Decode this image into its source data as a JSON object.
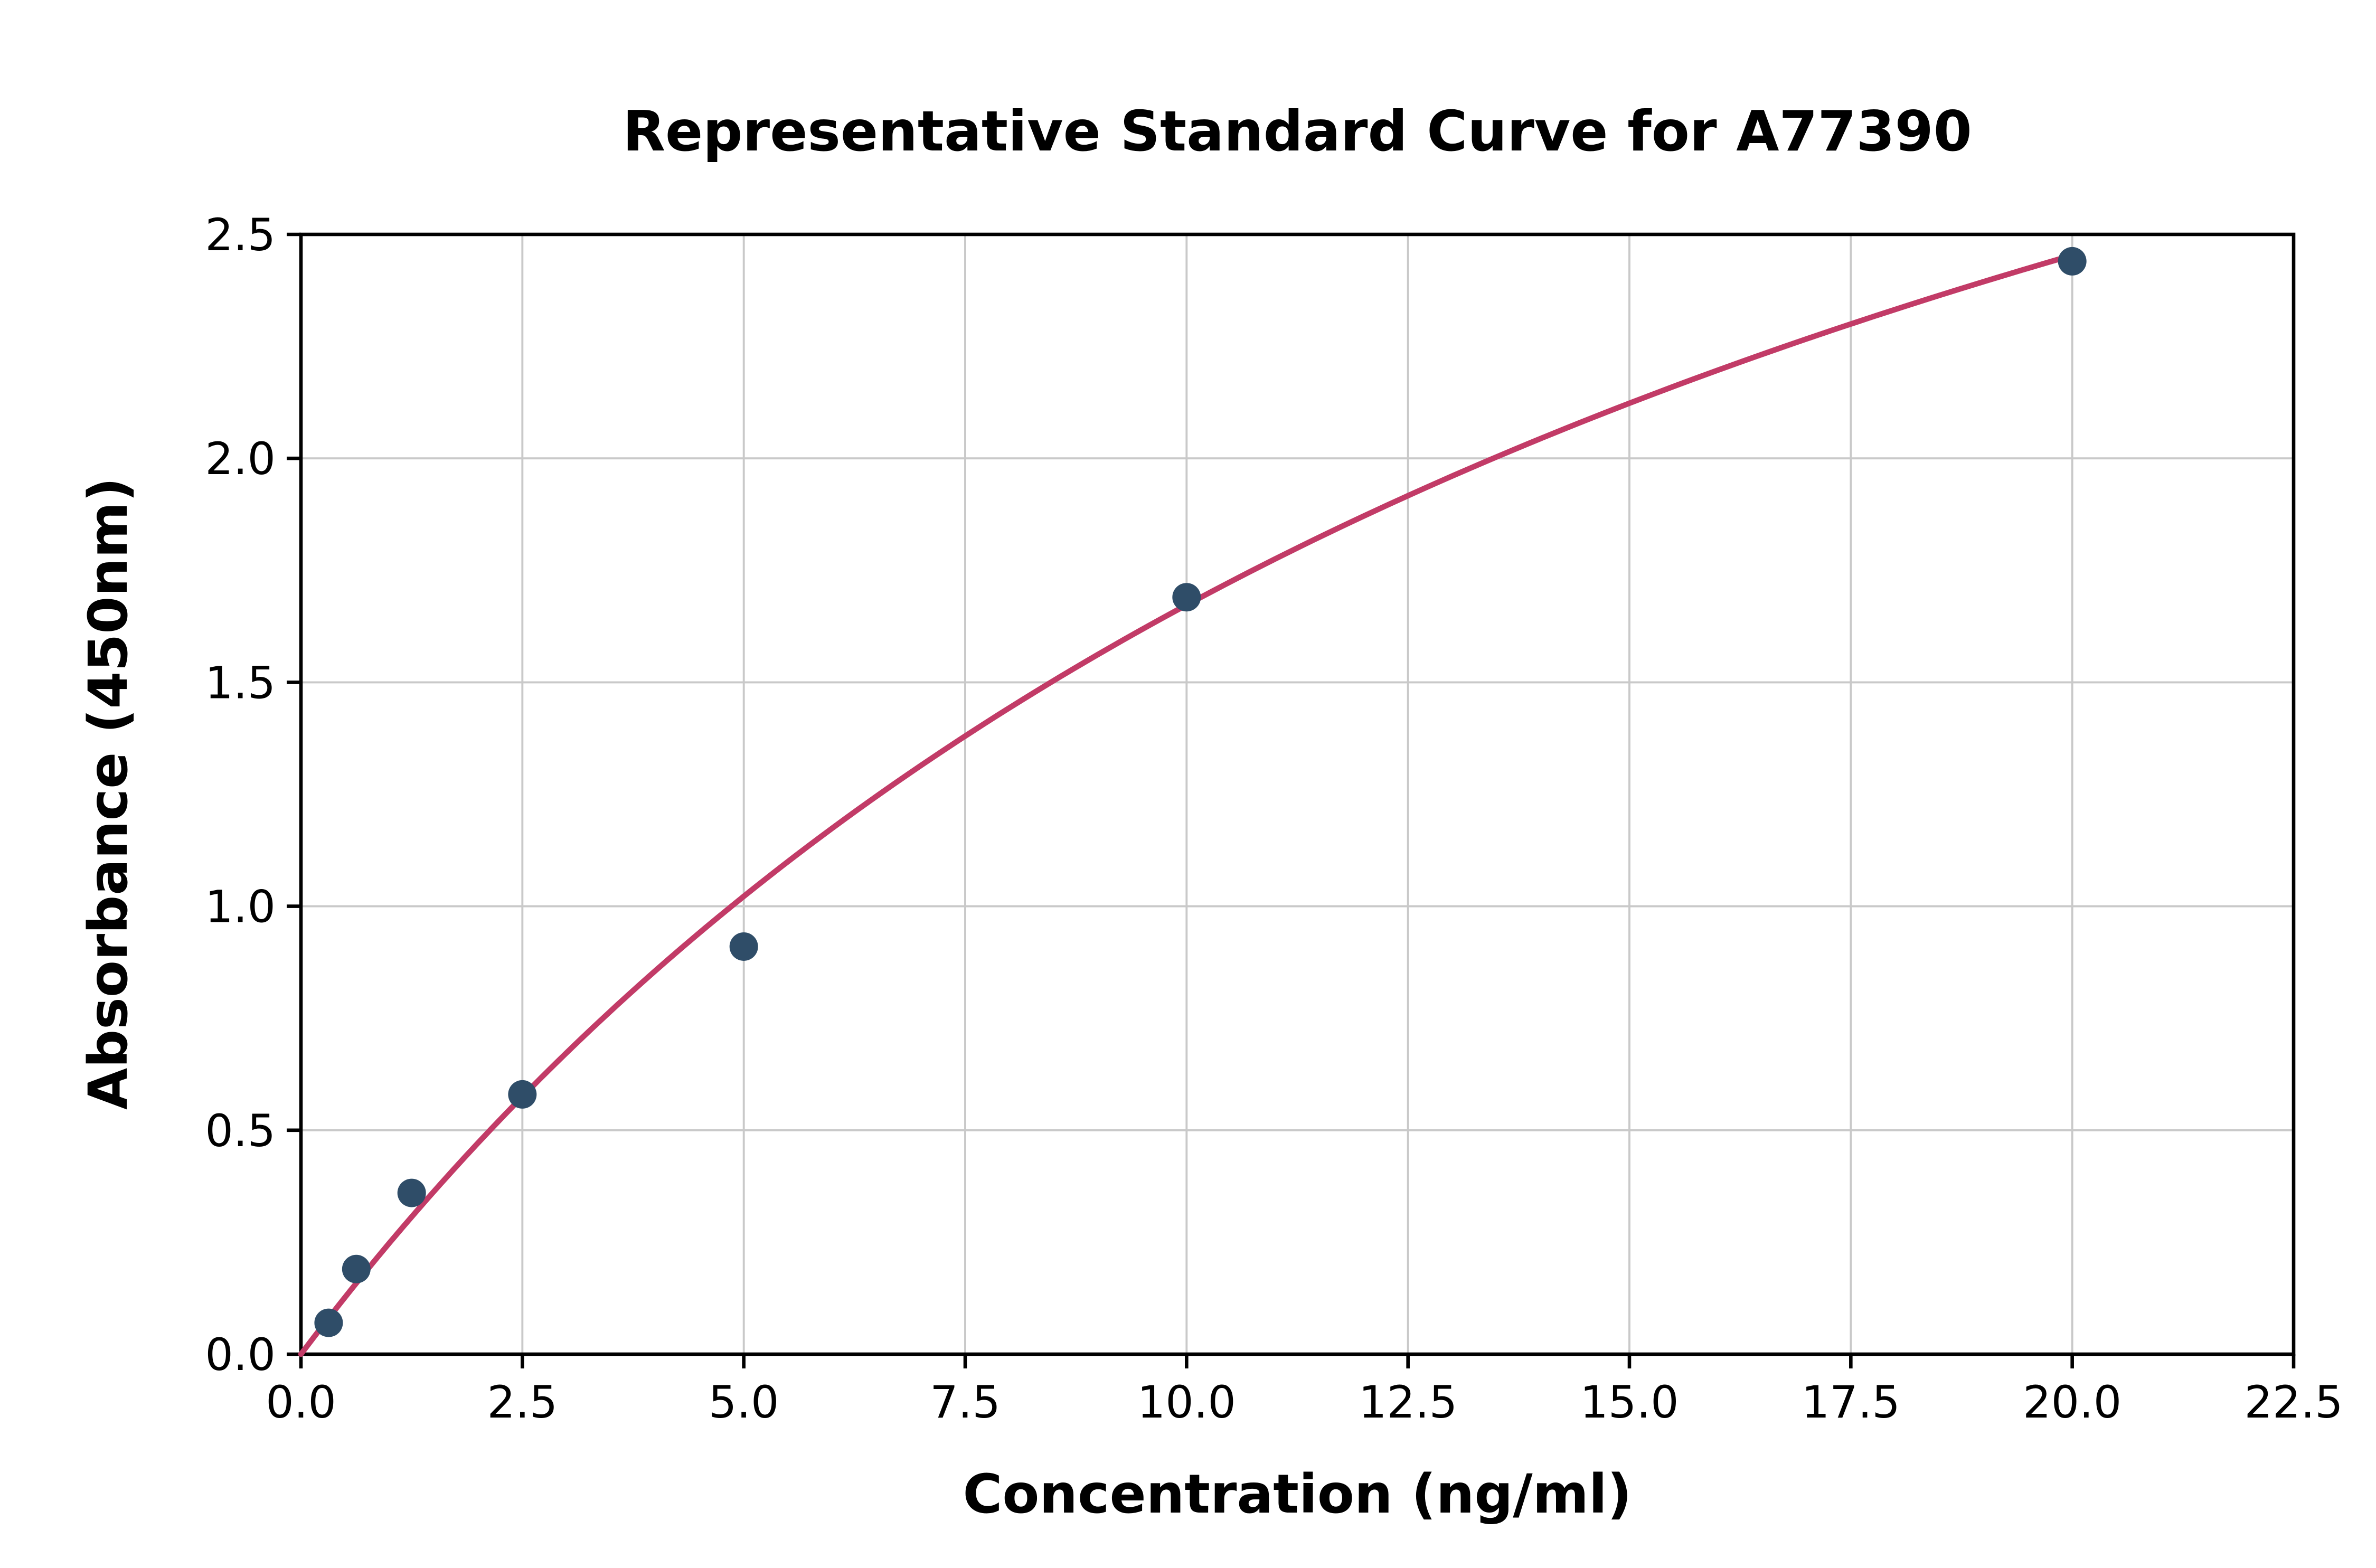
{
  "chart_data": {
    "type": "scatter",
    "title": "Representative Standard Curve for A77390",
    "xlabel": "Concentration (ng/ml)",
    "ylabel": "Absorbance (450nm)",
    "xlim": [
      0,
      22.5
    ],
    "ylim": [
      0,
      2.5
    ],
    "xticks": [
      0.0,
      2.5,
      5.0,
      7.5,
      10.0,
      12.5,
      15.0,
      17.5,
      20.0,
      22.5
    ],
    "xtick_labels": [
      "0.0",
      "2.5",
      "5.0",
      "7.5",
      "10.0",
      "12.5",
      "15.0",
      "17.5",
      "20.0",
      "22.5"
    ],
    "yticks": [
      0.0,
      0.5,
      1.0,
      1.5,
      2.0,
      2.5
    ],
    "ytick_labels": [
      "0.0",
      "0.5",
      "1.0",
      "1.5",
      "2.0",
      "2.5"
    ],
    "grid": true,
    "legend": null,
    "points": [
      {
        "x": 0.3125,
        "y": 0.07
      },
      {
        "x": 0.625,
        "y": 0.19
      },
      {
        "x": 1.25,
        "y": 0.36
      },
      {
        "x": 2.5,
        "y": 0.58
      },
      {
        "x": 5.0,
        "y": 0.91
      },
      {
        "x": 10.0,
        "y": 1.69
      },
      {
        "x": 20.0,
        "y": 2.44
      }
    ],
    "fit_curve": {
      "model": "michaelis_menten",
      "vmax": 4.6,
      "km": 17.5,
      "x_start": 0,
      "x_end": 20.0
    },
    "colors": {
      "curve": "#c23b67",
      "points": "#2f4d68",
      "grid": "#c9c9c9",
      "axis": "#000000",
      "background": "#ffffff"
    }
  }
}
